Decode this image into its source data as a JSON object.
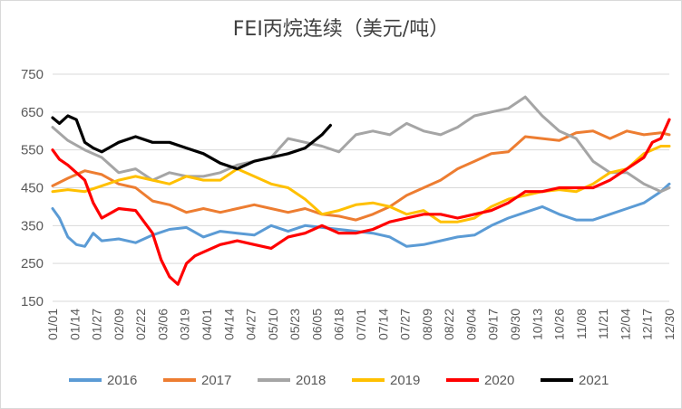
{
  "chart_data": {
    "type": "line",
    "title": "FEI丙烷连续（美元/吨）",
    "xlabel": "",
    "ylabel": "",
    "ylim": [
      150,
      750
    ],
    "yticks": [
      150,
      250,
      350,
      450,
      550,
      650,
      750
    ],
    "x_ticks": [
      "01/01",
      "01/14",
      "01/27",
      "02/09",
      "02/22",
      "03/06",
      "03/19",
      "04/01",
      "04/14",
      "04/27",
      "05/10",
      "05/23",
      "06/05",
      "06/18",
      "07/01",
      "07/14",
      "07/27",
      "08/09",
      "08/22",
      "09/04",
      "09/17",
      "09/30",
      "10/13",
      "10/26",
      "11/08",
      "11/21",
      "12/04",
      "12/17",
      "12/30"
    ],
    "legend_position": "bottom",
    "grid": "horizontal",
    "x_domain": "day of year (1-365)",
    "series": [
      {
        "name": "2016",
        "color": "#5B9BD5",
        "x": [
          1,
          5,
          10,
          15,
          20,
          25,
          30,
          40,
          50,
          60,
          70,
          80,
          90,
          100,
          110,
          120,
          130,
          140,
          150,
          160,
          170,
          180,
          190,
          200,
          210,
          220,
          230,
          240,
          250,
          260,
          270,
          280,
          290,
          300,
          310,
          320,
          330,
          340,
          350,
          360,
          365
        ],
        "values": [
          395,
          370,
          320,
          300,
          295,
          330,
          310,
          315,
          305,
          325,
          340,
          345,
          320,
          335,
          330,
          325,
          350,
          335,
          350,
          345,
          340,
          335,
          330,
          320,
          295,
          300,
          310,
          320,
          325,
          350,
          370,
          385,
          400,
          380,
          365,
          365,
          380,
          395,
          410,
          440,
          460
        ]
      },
      {
        "name": "2017",
        "color": "#ED7D31",
        "x": [
          1,
          10,
          20,
          30,
          40,
          50,
          60,
          70,
          80,
          90,
          100,
          110,
          120,
          130,
          140,
          150,
          160,
          170,
          180,
          190,
          200,
          210,
          220,
          230,
          240,
          250,
          260,
          270,
          280,
          290,
          300,
          310,
          320,
          330,
          340,
          350,
          360,
          365
        ],
        "values": [
          455,
          475,
          495,
          485,
          460,
          450,
          415,
          405,
          385,
          395,
          385,
          395,
          405,
          395,
          385,
          395,
          380,
          375,
          365,
          380,
          400,
          430,
          450,
          470,
          500,
          520,
          540,
          545,
          585,
          580,
          575,
          595,
          600,
          580,
          600,
          590,
          595,
          590
        ]
      },
      {
        "name": "2018",
        "color": "#A5A5A5",
        "x": [
          1,
          10,
          20,
          30,
          40,
          50,
          60,
          70,
          80,
          90,
          100,
          110,
          120,
          130,
          140,
          150,
          160,
          170,
          180,
          190,
          200,
          210,
          220,
          230,
          240,
          250,
          260,
          270,
          280,
          290,
          300,
          310,
          320,
          330,
          340,
          350,
          360,
          365
        ],
        "values": [
          610,
          575,
          550,
          530,
          490,
          500,
          470,
          490,
          480,
          480,
          490,
          510,
          520,
          530,
          580,
          570,
          560,
          545,
          590,
          600,
          590,
          620,
          600,
          590,
          610,
          640,
          650,
          660,
          690,
          640,
          600,
          580,
          520,
          490,
          490,
          460,
          440,
          450
        ]
      },
      {
        "name": "2019",
        "color": "#FFC000",
        "x": [
          1,
          10,
          20,
          30,
          40,
          50,
          60,
          70,
          80,
          90,
          100,
          110,
          120,
          130,
          140,
          150,
          160,
          170,
          180,
          190,
          200,
          210,
          220,
          230,
          240,
          250,
          260,
          270,
          280,
          290,
          300,
          310,
          320,
          330,
          340,
          350,
          360,
          365
        ],
        "values": [
          440,
          445,
          440,
          455,
          470,
          480,
          470,
          460,
          480,
          470,
          470,
          500,
          480,
          460,
          450,
          420,
          380,
          390,
          405,
          410,
          400,
          380,
          390,
          360,
          360,
          370,
          400,
          420,
          430,
          440,
          445,
          440,
          460,
          490,
          500,
          540,
          560,
          560
        ]
      },
      {
        "name": "2020",
        "color": "#FF0000",
        "x": [
          1,
          5,
          10,
          15,
          20,
          25,
          30,
          40,
          50,
          55,
          60,
          65,
          70,
          75,
          80,
          85,
          90,
          95,
          100,
          110,
          120,
          130,
          140,
          150,
          160,
          170,
          180,
          190,
          200,
          210,
          220,
          230,
          240,
          250,
          260,
          270,
          280,
          290,
          300,
          310,
          320,
          330,
          340,
          350,
          355,
          360,
          365
        ],
        "values": [
          550,
          525,
          510,
          490,
          470,
          410,
          370,
          395,
          390,
          360,
          330,
          260,
          215,
          195,
          250,
          270,
          280,
          290,
          300,
          310,
          300,
          290,
          320,
          330,
          350,
          330,
          330,
          340,
          360,
          370,
          380,
          380,
          370,
          380,
          390,
          410,
          440,
          440,
          450,
          450,
          450,
          470,
          500,
          530,
          570,
          580,
          630
        ]
      },
      {
        "name": "2021",
        "color": "#000000",
        "x": [
          1,
          5,
          10,
          15,
          20,
          25,
          30,
          40,
          50,
          60,
          70,
          80,
          90,
          100,
          110,
          120,
          130,
          140,
          150,
          160,
          165
        ],
        "values": [
          635,
          620,
          640,
          630,
          570,
          555,
          545,
          570,
          585,
          570,
          570,
          555,
          540,
          515,
          500,
          520,
          530,
          540,
          555,
          590,
          615
        ]
      }
    ]
  }
}
